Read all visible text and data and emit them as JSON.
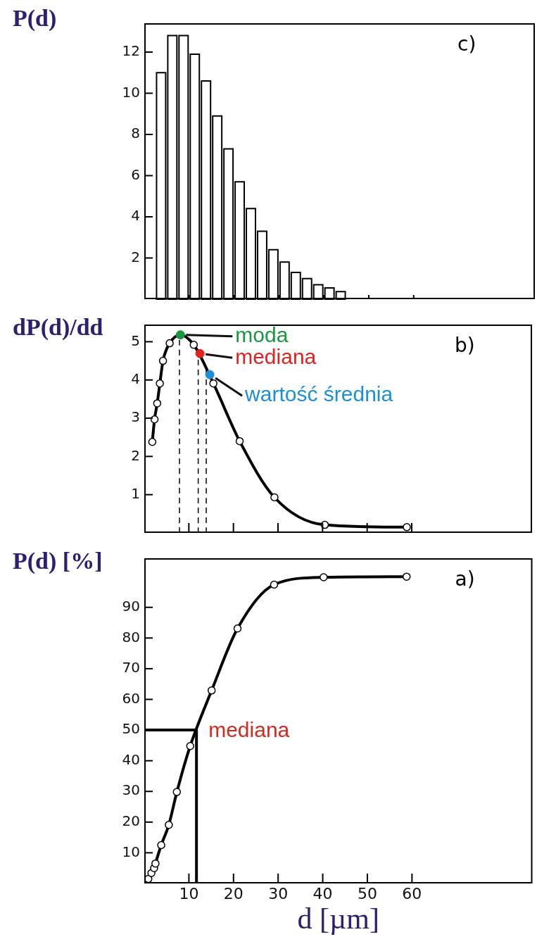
{
  "chart_data": [
    {
      "type": "histogram",
      "ylabel": "P(d)",
      "annotations": [
        "c)"
      ],
      "bins": [
        2.5,
        5,
        7.5,
        10,
        12.5,
        15,
        17.5,
        20,
        22.5,
        25,
        27.5,
        30,
        32.5,
        35,
        37.5,
        40,
        42.5,
        45
      ],
      "values": [
        11.0,
        12.8,
        12.8,
        11.9,
        10.6,
        8.9,
        7.3,
        5.7,
        4.4,
        3.3,
        2.4,
        1.8,
        1.3,
        1.0,
        0.7,
        0.55,
        0.37
      ],
      "color": "#ffffff",
      "xlim": [
        0,
        87
      ],
      "xticks": [
        10,
        20,
        30,
        40,
        50,
        60
      ],
      "ylim": [
        0,
        13.4
      ],
      "yticks": [
        2,
        4,
        6,
        8,
        10,
        12
      ],
      "tick_labels": "y"
    },
    {
      "type": "line",
      "ylabel": "dP(d)/dd",
      "marker": "circle",
      "xlim": [
        0,
        87
      ],
      "xticks": [
        10,
        20,
        30,
        40,
        50,
        60
      ],
      "ylim": [
        0,
        5.45
      ],
      "yticks": [
        1,
        2,
        3,
        4,
        5
      ],
      "tick_labels": "y",
      "annotations": [
        "b)",
        {
          "text": "moda",
          "x": 8.1,
          "y": 5.18
        },
        {
          "text": "mediana",
          "x": 12.5,
          "y": 4.69
        },
        {
          "text": "wartość średnia",
          "x": 14.7,
          "y": 4.14
        }
      ],
      "series": [
        {
          "type": "line",
          "line_style": "dashed",
          "marker": "none",
          "color": "#000000",
          "x": [
            7.9,
            7.9
          ],
          "values": [
            0,
            5.18
          ]
        },
        {
          "type": "line",
          "line_style": "dashed",
          "marker": "none",
          "color": "#000000",
          "x": [
            12.1,
            12.1
          ],
          "values": [
            0,
            4.75
          ]
        },
        {
          "type": "line",
          "line_style": "dashed",
          "marker": "none",
          "color": "#000000",
          "x": [
            13.9,
            13.9
          ],
          "values": [
            0,
            4.3
          ]
        },
        {
          "type": "line",
          "color": "#000000",
          "x": [
            1.8,
            2.3,
            2.9,
            3.5,
            4.2,
            5.7,
            8.1,
            11.1,
            15.5,
            21.4,
            29.2,
            40.5,
            58.9
          ],
          "values": [
            2.38,
            2.97,
            3.39,
            3.91,
            4.5,
            4.96,
            5.18,
            4.92,
            3.91,
            2.4,
            0.93,
            0.21,
            0.15
          ]
        },
        {
          "type": "scatter",
          "x": [
            8.1,
            12.5,
            14.7
          ],
          "values": [
            5.18,
            4.69,
            4.14
          ],
          "colors": [
            "#1a9641",
            "#e0211d",
            "#1c8fd6"
          ]
        }
      ]
    },
    {
      "type": "line",
      "ylabel": "P(d) [%]",
      "xlabel": "d [µm]",
      "marker": "circle",
      "xlim": [
        0,
        87
      ],
      "xticks": [
        10,
        20,
        30,
        40,
        50,
        60
      ],
      "ylim": [
        0,
        106
      ],
      "yticks": [
        10,
        20,
        30,
        40,
        50,
        60,
        70,
        80,
        90
      ],
      "annotations": [
        "a)",
        {
          "text": "mediana",
          "x": 11.7,
          "y": 50
        }
      ],
      "series": [
        {
          "type": "line",
          "marker": "none",
          "color": "#000000",
          "x": [
            0,
            11.7,
            11.7
          ],
          "values": [
            50,
            50,
            0
          ]
        },
        {
          "type": "line",
          "color": "#000000",
          "x": [
            0.9,
            1.6,
            2.2,
            2.5,
            3.8,
            5.5,
            7.3,
            10.3,
            15.1,
            20.9,
            29.1,
            40.2,
            58.8
          ],
          "values": [
            1.5,
            3.4,
            5.0,
            6.5,
            12.5,
            19.1,
            29.8,
            44.8,
            62.9,
            83.1,
            97.4,
            99.8,
            100
          ]
        }
      ]
    }
  ]
}
